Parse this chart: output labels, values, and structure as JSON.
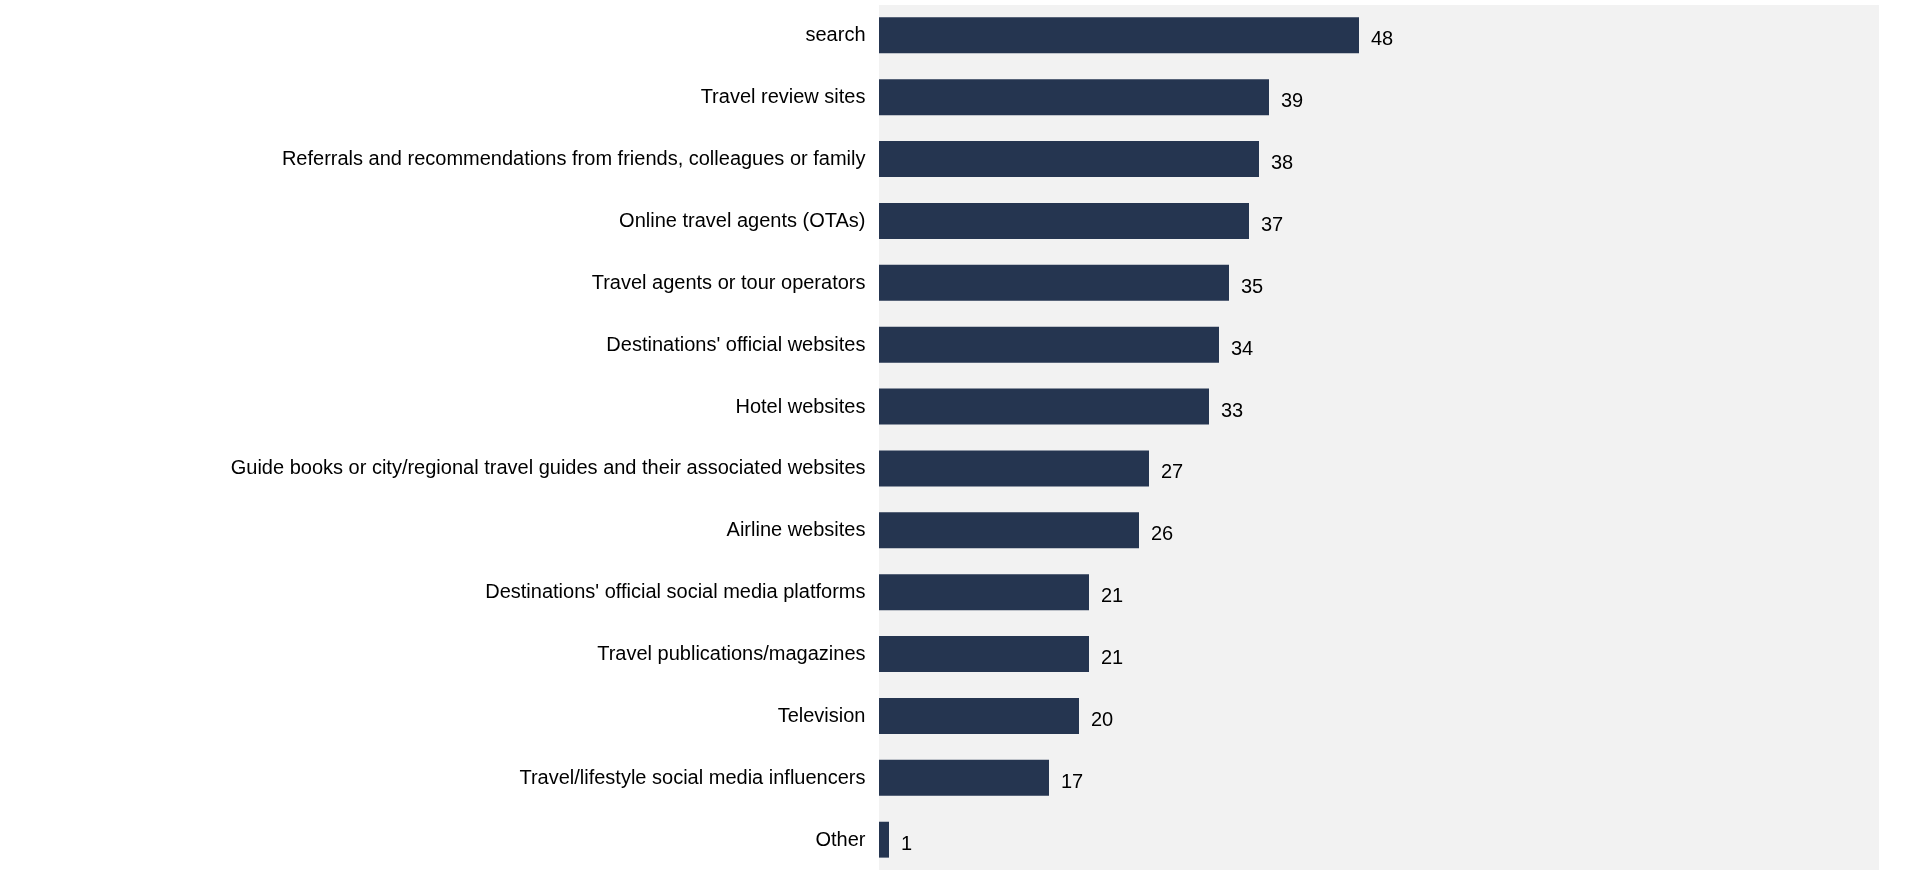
{
  "chart_data": {
    "type": "bar",
    "orientation": "horizontal",
    "categories": [
      "search",
      "Travel review sites",
      "Referrals and recommendations from friends, colleagues or family",
      "Online travel agents (OTAs)",
      "Travel agents or tour operators",
      "Destinations' official websites",
      "Hotel websites",
      "Guide books or city/regional travel guides and their associated websites",
      "Airline websites",
      "Destinations' official social media platforms",
      "Travel publications/magazines",
      "Television",
      "Travel/lifestyle social media influencers",
      "Other"
    ],
    "values": [
      48,
      39,
      38,
      37,
      35,
      34,
      33,
      27,
      26,
      21,
      21,
      20,
      17,
      1
    ],
    "color": "#253550",
    "xlim": [
      0,
      100
    ],
    "data_labels": true
  }
}
